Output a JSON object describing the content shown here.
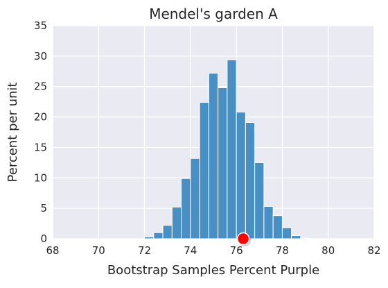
{
  "chart_data": {
    "type": "histogram",
    "title": "Mendel's garden A",
    "xlabel": "Bootstrap Samples Percent Purple",
    "ylabel": "Percent per unit",
    "xlim": [
      68,
      82
    ],
    "ylim": [
      0,
      35
    ],
    "xticks": [
      "68",
      "70",
      "72",
      "74",
      "76",
      "78",
      "80",
      "82"
    ],
    "yticks": [
      "0",
      "5",
      "10",
      "15",
      "20",
      "25",
      "30",
      "35"
    ],
    "grid": true,
    "bar_color": "#3a87c0",
    "bin_width": 0.4,
    "bins": [
      {
        "start": 72.0,
        "value": 0.3
      },
      {
        "start": 72.4,
        "value": 1.0
      },
      {
        "start": 72.8,
        "value": 2.2
      },
      {
        "start": 73.2,
        "value": 5.2
      },
      {
        "start": 73.6,
        "value": 9.9
      },
      {
        "start": 74.0,
        "value": 13.2
      },
      {
        "start": 74.4,
        "value": 22.4
      },
      {
        "start": 74.8,
        "value": 27.2
      },
      {
        "start": 75.2,
        "value": 24.8
      },
      {
        "start": 75.6,
        "value": 29.4
      },
      {
        "start": 76.0,
        "value": 20.8
      },
      {
        "start": 76.4,
        "value": 19.1
      },
      {
        "start": 76.8,
        "value": 12.5
      },
      {
        "start": 77.2,
        "value": 5.3
      },
      {
        "start": 77.6,
        "value": 3.8
      },
      {
        "start": 78.0,
        "value": 1.8
      },
      {
        "start": 78.4,
        "value": 0.5
      },
      {
        "start": 78.8,
        "value": 0.1
      }
    ],
    "marker": {
      "x": 76.3,
      "y": 0,
      "color": "#ff0000",
      "edge_color": "#ffffff"
    }
  }
}
